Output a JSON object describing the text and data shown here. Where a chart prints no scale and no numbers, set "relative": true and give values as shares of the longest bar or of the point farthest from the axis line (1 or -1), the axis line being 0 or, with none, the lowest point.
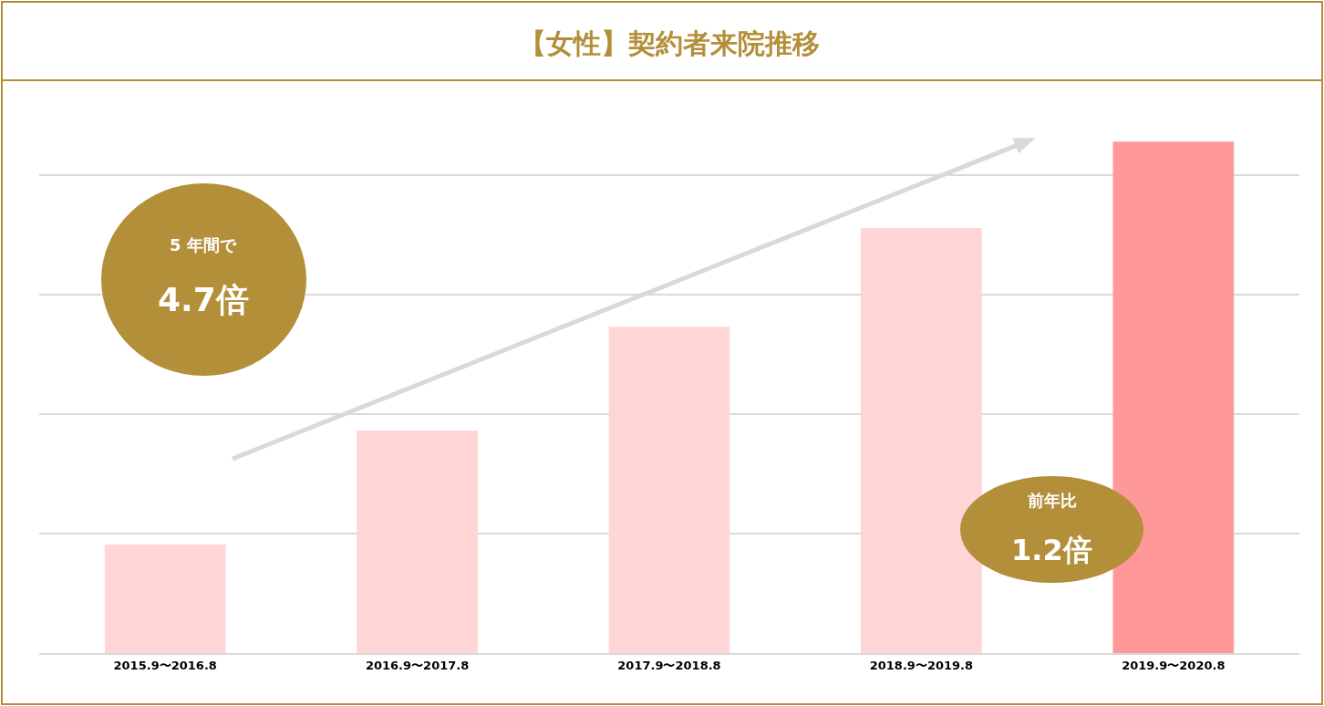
{
  "chart_data": {
    "type": "bar",
    "title": "【女性】契約者来院推移",
    "categories": [
      "2015.9〜2016.8",
      "2016.9〜2017.8",
      "2017.9〜2018.8",
      "2018.9〜2019.8",
      "2019.9〜2020.8"
    ],
    "values": [
      0.212,
      0.435,
      0.638,
      0.831,
      1.0
    ],
    "colors": [
      "#ffd5d6",
      "#ffd5d6",
      "#ffd5d6",
      "#ffd5d6",
      "#ff9999"
    ],
    "relative": true,
    "grid": "y",
    "tick_labels": "x",
    "annotations": [
      "5 年間で",
      "4.7倍",
      "前年比",
      "1.2倍"
    ]
  }
}
